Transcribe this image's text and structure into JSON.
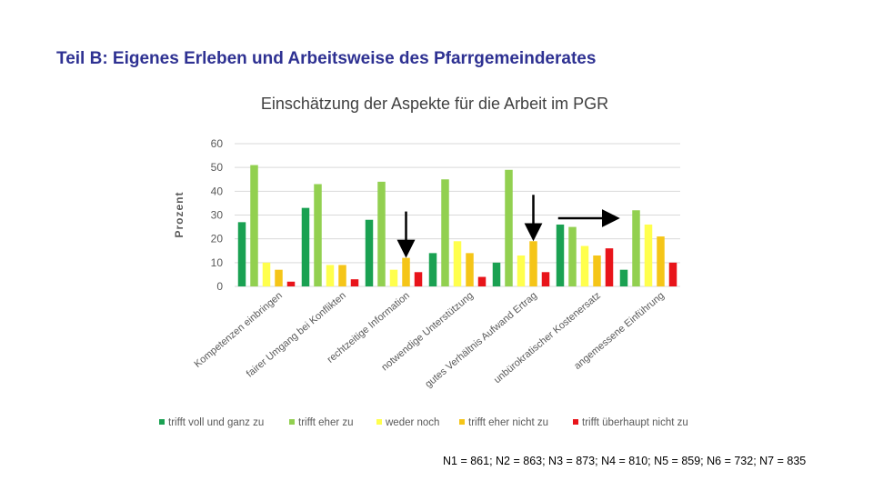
{
  "slide": {
    "title": "Teil B: Eigenes Erleben und Arbeitsweise des Pfarrgemeinderates",
    "footnote": "N1 = 861; N2 = 863; N3 = 873; N4 = 810; N5 = 859; N6 = 732; N7 = 835"
  },
  "chart_data": {
    "type": "bar",
    "title": "Einschätzung der Aspekte für die Arbeit im PGR",
    "xlabel": "",
    "ylabel": "Prozent",
    "ylim": [
      0,
      60
    ],
    "yticks": [
      0,
      10,
      20,
      30,
      40,
      50,
      60
    ],
    "grid": true,
    "legend_position": "bottom",
    "categories": [
      "Kompetenzen einbringen",
      "fairer Umgang bei Konflikten",
      "rechtzeitige Information",
      "notwendige Unterstützung",
      "gutes Verhältnis Aufwand Ertrag",
      "unbürokratischer Kostenersatz",
      "angemessene Einführung"
    ],
    "series": [
      {
        "name": "trifft voll und ganz zu",
        "color": "#1aa152",
        "values": [
          27,
          33,
          28,
          14,
          10,
          26,
          7
        ]
      },
      {
        "name": "trifft eher zu",
        "color": "#92d050",
        "values": [
          51,
          43,
          44,
          45,
          49,
          25,
          32
        ]
      },
      {
        "name": "weder noch",
        "color": "#ffff4d",
        "values": [
          10,
          9,
          7,
          19,
          13,
          17,
          26
        ]
      },
      {
        "name": "trifft eher nicht zu",
        "color": "#f5c518",
        "values": [
          7,
          9,
          12,
          14,
          19,
          13,
          21
        ]
      },
      {
        "name": "trifft überhaupt nicht zu",
        "color": "#e8141a",
        "values": [
          2,
          3,
          6,
          4,
          6,
          16,
          10
        ]
      }
    ],
    "annotations": [
      {
        "type": "arrow-down",
        "category": "rechtzeitige Information"
      },
      {
        "type": "arrow-down",
        "category": "gutes Verhältnis Aufwand Ertrag"
      },
      {
        "type": "arrow-right",
        "category": "unbürokratischer Kostenersatz"
      }
    ]
  }
}
